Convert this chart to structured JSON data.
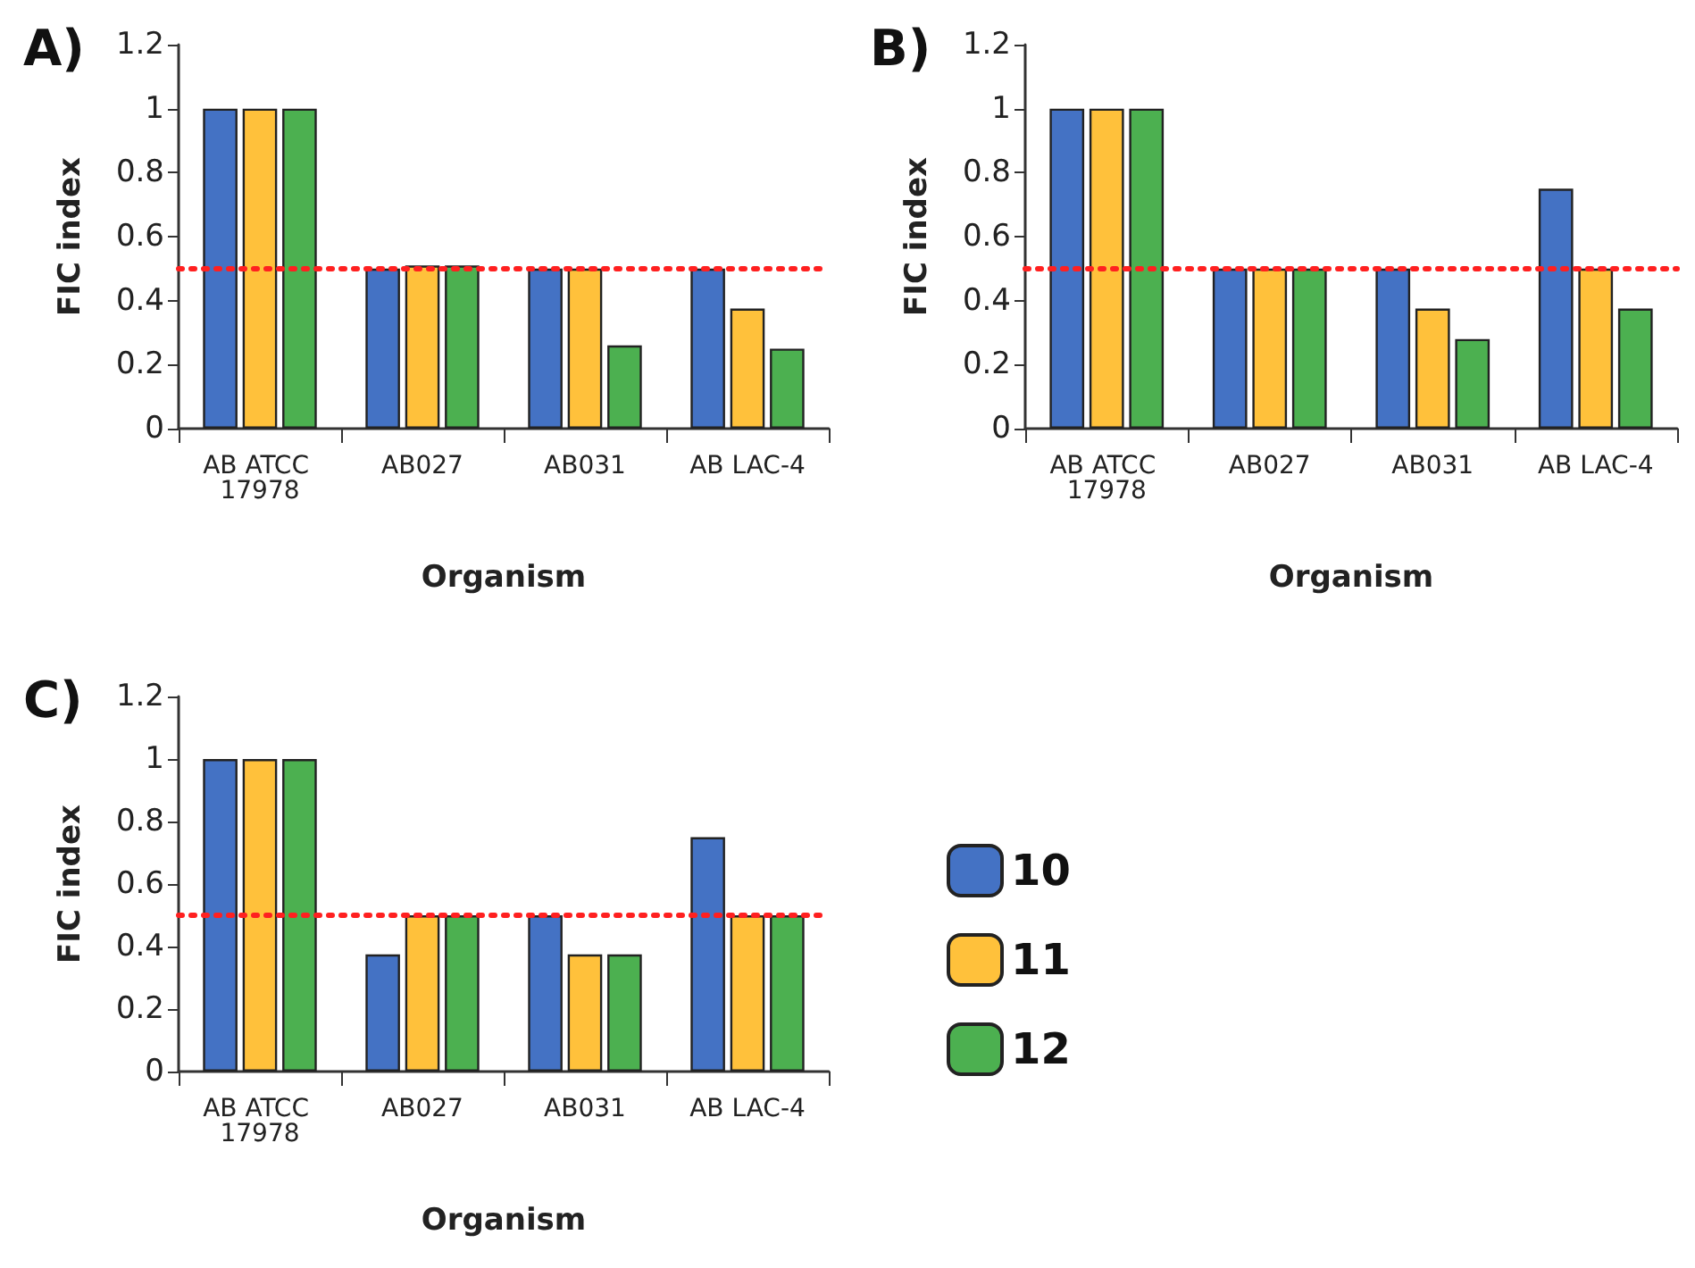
{
  "chart_data": [
    {
      "type": "bar",
      "title": "A)",
      "xlabel": "Organism",
      "ylabel": "FIC index",
      "categories": [
        "AB ATCC 17978",
        "AB027",
        "AB031",
        "AB LAC-4"
      ],
      "series": [
        {
          "color": "#4472c4",
          "values": [
            1,
            0.5,
            0.5,
            0.5
          ]
        },
        {
          "color": "#ffc13b",
          "values": [
            1,
            0.51,
            0.5,
            0.375
          ]
        },
        {
          "color": "#4cb050",
          "values": [
            1,
            0.51,
            0.26,
            0.25
          ]
        }
      ],
      "ylim": [
        0,
        1.2
      ],
      "yticks": [
        0,
        0.2,
        0.4,
        0.6,
        0.8,
        1,
        1.2
      ],
      "grid": false,
      "legend": false,
      "ref_lines": [
        {
          "axis": "y",
          "value": 0.5,
          "color": "#ff2020",
          "line_style": "dotted"
        }
      ]
    },
    {
      "type": "bar",
      "title": "B)",
      "xlabel": "Organism",
      "ylabel": "FIC index",
      "categories": [
        "AB ATCC 17978",
        "AB027",
        "AB031",
        "AB LAC-4"
      ],
      "series": [
        {
          "color": "#4472c4",
          "values": [
            1,
            0.5,
            0.5,
            0.75
          ]
        },
        {
          "color": "#ffc13b",
          "values": [
            1,
            0.5,
            0.375,
            0.5
          ]
        },
        {
          "color": "#4cb050",
          "values": [
            1,
            0.5,
            0.28,
            0.375
          ]
        }
      ],
      "ylim": [
        0,
        1.2
      ],
      "yticks": [
        0,
        0.2,
        0.4,
        0.6,
        0.8,
        1,
        1.2
      ],
      "grid": false,
      "legend": false,
      "ref_lines": [
        {
          "axis": "y",
          "value": 0.5,
          "color": "#ff2020",
          "line_style": "dotted"
        }
      ]
    },
    {
      "type": "bar",
      "title": "C)",
      "xlabel": "Organism",
      "ylabel": "FIC index",
      "categories": [
        "AB ATCC 17978",
        "AB027",
        "AB031",
        "AB LAC-4"
      ],
      "series": [
        {
          "name": "10",
          "color": "#4472c4",
          "values": [
            1,
            0.375,
            0.5,
            0.75
          ]
        },
        {
          "name": "11",
          "color": "#ffc13b",
          "values": [
            1,
            0.5,
            0.375,
            0.5
          ]
        },
        {
          "name": "12",
          "color": "#4cb050",
          "values": [
            1,
            0.5,
            0.375,
            0.5
          ]
        }
      ],
      "ylim": [
        0,
        1.2
      ],
      "yticks": [
        0,
        0.2,
        0.4,
        0.6,
        0.8,
        1,
        1.2
      ],
      "grid": false,
      "legend": "right",
      "ref_lines": [
        {
          "axis": "y",
          "value": 0.5,
          "color": "#ff2020",
          "line_style": "dotted"
        }
      ]
    }
  ]
}
